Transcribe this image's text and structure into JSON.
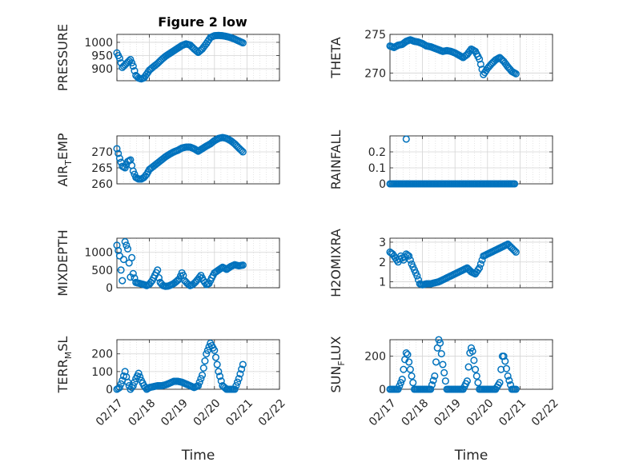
{
  "figure": {
    "title": "Figure 2 low"
  },
  "colors": {
    "marker": "#0072BD",
    "axis": "#262626",
    "grid": "#d4d4d4"
  },
  "x_axis": {
    "type": "date",
    "range": [
      "02/17",
      "02/22"
    ],
    "tick_labels": [
      "02/17",
      "02/18",
      "02/19",
      "02/20",
      "02/21",
      "02/22"
    ],
    "xlabel": "Time"
  },
  "chart_data": [
    {
      "type": "scatter",
      "name": "pressure",
      "ylabel": "PRESSURE",
      "ylim": [
        855,
        1030
      ],
      "yticks": [
        900,
        950,
        1000
      ],
      "grid": true,
      "x": [
        "02/17 00:00",
        "02/17 02:00",
        "02/17 04:00",
        "02/17 06:00",
        "02/17 08:00",
        "02/17 10:00",
        "02/17 12:00",
        "02/17 14:00",
        "02/17 16:00",
        "02/17 18:00",
        "02/17 20:00",
        "02/17 22:00",
        "02/18 00:00",
        "02/18 03:00",
        "02/18 06:00",
        "02/18 09:00",
        "02/18 12:00",
        "02/18 15:00",
        "02/18 18:00",
        "02/18 21:00",
        "02/19 00:00",
        "02/19 03:00",
        "02/19 06:00",
        "02/19 09:00",
        "02/19 12:00",
        "02/19 15:00",
        "02/19 18:00",
        "02/19 21:00",
        "02/20 00:00",
        "02/20 03:00",
        "02/20 06:00",
        "02/20 09:00",
        "02/20 12:00",
        "02/20 15:00",
        "02/20 18:00",
        "02/20 21:00"
      ],
      "y": [
        960,
        940,
        905,
        915,
        925,
        935,
        910,
        875,
        865,
        862,
        866,
        880,
        895,
        908,
        920,
        935,
        948,
        958,
        968,
        978,
        988,
        994,
        990,
        975,
        962,
        975,
        995,
        1018,
        1025,
        1026,
        1025,
        1022,
        1018,
        1012,
        1005,
        998
      ]
    },
    {
      "type": "scatter",
      "name": "theta",
      "ylabel": "THETA",
      "ylim": [
        269,
        275
      ],
      "yticks": [
        270,
        275
      ],
      "grid": true,
      "x": [
        "02/17 00:00",
        "02/17 03:00",
        "02/17 06:00",
        "02/17 09:00",
        "02/17 12:00",
        "02/17 15:00",
        "02/17 18:00",
        "02/17 21:00",
        "02/18 00:00",
        "02/18 03:00",
        "02/18 06:00",
        "02/18 09:00",
        "02/18 12:00",
        "02/18 15:00",
        "02/18 18:00",
        "02/18 21:00",
        "02/19 00:00",
        "02/19 03:00",
        "02/19 06:00",
        "02/19 09:00",
        "02/19 12:00",
        "02/19 15:00",
        "02/19 18:00",
        "02/19 21:00",
        "02/20 00:00",
        "02/20 03:00",
        "02/20 06:00",
        "02/20 09:00",
        "02/20 12:00",
        "02/20 15:00",
        "02/20 18:00",
        "02/20 21:00"
      ],
      "y": [
        273.5,
        273.3,
        273.6,
        273.7,
        274.1,
        274.3,
        274.1,
        274.0,
        273.8,
        273.5,
        273.4,
        273.2,
        273.0,
        272.8,
        272.9,
        272.8,
        272.6,
        272.3,
        272.0,
        272.4,
        273.1,
        272.8,
        271.8,
        269.8,
        270.6,
        271.2,
        271.7,
        272.0,
        271.5,
        270.8,
        270.2,
        269.9
      ]
    },
    {
      "type": "scatter",
      "name": "air_temp",
      "ylabel": "AIR_TEMP",
      "ylim": [
        260,
        275
      ],
      "yticks": [
        260,
        265,
        270
      ],
      "grid": true,
      "x": [
        "02/17 00:00",
        "02/17 02:00",
        "02/17 04:00",
        "02/17 06:00",
        "02/17 08:00",
        "02/17 10:00",
        "02/17 12:00",
        "02/17 14:00",
        "02/17 16:00",
        "02/17 18:00",
        "02/17 20:00",
        "02/17 22:00",
        "02/18 00:00",
        "02/18 03:00",
        "02/18 06:00",
        "02/18 09:00",
        "02/18 12:00",
        "02/18 15:00",
        "02/18 18:00",
        "02/18 21:00",
        "02/19 00:00",
        "02/19 03:00",
        "02/19 06:00",
        "02/19 09:00",
        "02/19 12:00",
        "02/19 15:00",
        "02/19 18:00",
        "02/19 21:00",
        "02/20 00:00",
        "02/20 03:00",
        "02/20 06:00",
        "02/20 09:00",
        "02/20 12:00",
        "02/20 15:00",
        "02/20 18:00",
        "02/20 21:00"
      ],
      "y": [
        271,
        268,
        265.5,
        265,
        267,
        267.5,
        264,
        262,
        261.5,
        261.5,
        262,
        263,
        264.5,
        265.5,
        266.5,
        267.5,
        268.5,
        269.3,
        270,
        270.5,
        271.2,
        271.5,
        271.5,
        271,
        270.2,
        271,
        271.8,
        272.5,
        273.5,
        274.2,
        274.5,
        274.2,
        273.5,
        272.5,
        271.2,
        270
      ]
    },
    {
      "type": "scatter",
      "name": "rainfall",
      "ylabel": "RAINFALL",
      "ylim": [
        0,
        0.3
      ],
      "yticks": [
        0,
        0.1,
        0.2
      ],
      "grid": true,
      "x": [
        "02/17 00:00",
        "02/17 04:00",
        "02/17 08:00",
        "02/17 12:00",
        "02/17 16:00",
        "02/17 20:00",
        "02/18 00:00",
        "02/18 04:00",
        "02/18 08:00",
        "02/18 12:00",
        "02/18 16:00",
        "02/18 20:00",
        "02/19 00:00",
        "02/19 04:00",
        "02/19 08:00",
        "02/19 12:00",
        "02/19 16:00",
        "02/19 20:00",
        "02/20 00:00",
        "02/20 04:00",
        "02/20 08:00",
        "02/20 12:00",
        "02/20 16:00",
        "02/20 20:00"
      ],
      "y": [
        0,
        0,
        0,
        0,
        0,
        0,
        0,
        0,
        0,
        0,
        0,
        0,
        0,
        0,
        0,
        0,
        0,
        0,
        0,
        0,
        0,
        0,
        0,
        0
      ],
      "outliers": {
        "x": [
          "02/17 12:00"
        ],
        "y": [
          0.28
        ]
      }
    },
    {
      "type": "scatter",
      "name": "mixdepth",
      "ylabel": "MIXDEPTH",
      "ylim": [
        0,
        1400
      ],
      "yticks": [
        0,
        500,
        1000
      ],
      "grid": true,
      "x": [
        "02/17 00:00",
        "02/17 02:00",
        "02/17 03:00",
        "02/17 04:00",
        "02/17 05:00",
        "02/17 06:00",
        "02/17 08:00",
        "02/17 09:00",
        "02/17 10:00",
        "02/17 11:00",
        "02/17 12:00",
        "02/17 14:00",
        "02/17 16:00",
        "02/17 18:00",
        "02/17 20:00",
        "02/17 22:00",
        "02/18 00:00",
        "02/18 02:00",
        "02/18 04:00",
        "02/18 06:00",
        "02/18 07:00",
        "02/18 08:00",
        "02/18 10:00",
        "02/18 12:00",
        "02/18 14:00",
        "02/18 16:00",
        "02/18 18:00",
        "02/18 20:00",
        "02/18 22:00",
        "02/19 00:00",
        "02/19 01:00",
        "02/19 02:00",
        "02/19 04:00",
        "02/19 06:00",
        "02/19 08:00",
        "02/19 10:00",
        "02/19 12:00",
        "02/19 14:00",
        "02/19 16:00",
        "02/19 18:00",
        "02/19 20:00",
        "02/19 22:00",
        "02/20 00:00",
        "02/20 03:00",
        "02/20 06:00",
        "02/20 09:00",
        "02/20 12:00",
        "02/20 15:00",
        "02/20 18:00",
        "02/20 21:00"
      ],
      "y": [
        1200,
        900,
        500,
        200,
        800,
        1300,
        1100,
        700,
        300,
        850,
        400,
        150,
        130,
        110,
        90,
        60,
        100,
        200,
        350,
        500,
        280,
        150,
        60,
        40,
        50,
        80,
        120,
        180,
        250,
        420,
        350,
        200,
        120,
        60,
        90,
        160,
        250,
        350,
        200,
        90,
        120,
        280,
        420,
        500,
        580,
        520,
        600,
        650,
        620,
        640
      ]
    },
    {
      "type": "scatter",
      "name": "h2omixra",
      "ylabel": "H2OMIXRA",
      "ylim": [
        0.7,
        3.2
      ],
      "yticks": [
        1,
        2,
        3
      ],
      "grid": true,
      "x": [
        "02/17 00:00",
        "02/17 02:00",
        "02/17 04:00",
        "02/17 06:00",
        "02/17 08:00",
        "02/17 10:00",
        "02/17 12:00",
        "02/17 14:00",
        "02/17 16:00",
        "02/17 18:00",
        "02/17 20:00",
        "02/17 22:00",
        "02/18 00:00",
        "02/18 03:00",
        "02/18 06:00",
        "02/18 09:00",
        "02/18 12:00",
        "02/18 15:00",
        "02/18 18:00",
        "02/18 21:00",
        "02/19 00:00",
        "02/19 03:00",
        "02/19 06:00",
        "02/19 09:00",
        "02/19 12:00",
        "02/19 15:00",
        "02/19 18:00",
        "02/19 21:00",
        "02/20 00:00",
        "02/20 03:00",
        "02/20 06:00",
        "02/20 09:00",
        "02/20 12:00",
        "02/20 15:00",
        "02/20 18:00",
        "02/20 21:00"
      ],
      "y": [
        2.5,
        2.4,
        2.2,
        2.0,
        2.3,
        2.1,
        2.4,
        2.3,
        1.9,
        1.6,
        1.3,
        0.9,
        0.85,
        0.9,
        0.9,
        0.95,
        1.0,
        1.1,
        1.2,
        1.3,
        1.4,
        1.5,
        1.6,
        1.7,
        1.5,
        1.4,
        1.7,
        2.3,
        2.4,
        2.5,
        2.6,
        2.7,
        2.8,
        2.9,
        2.7,
        2.5
      ]
    },
    {
      "type": "scatter",
      "name": "terr_msl",
      "ylabel": "TERR_MSL",
      "ylim": [
        0,
        280
      ],
      "yticks": [
        0,
        100,
        200
      ],
      "grid": true,
      "x": [
        "02/17 00:00",
        "02/17 02:00",
        "02/17 04:00",
        "02/17 06:00",
        "02/17 08:00",
        "02/17 10:00",
        "02/17 12:00",
        "02/17 14:00",
        "02/17 16:00",
        "02/17 18:00",
        "02/17 20:00",
        "02/17 22:00",
        "02/18 00:00",
        "02/18 03:00",
        "02/18 06:00",
        "02/18 09:00",
        "02/18 12:00",
        "02/18 15:00",
        "02/18 18:00",
        "02/18 21:00",
        "02/19 00:00",
        "02/19 03:00",
        "02/19 06:00",
        "02/19 09:00",
        "02/19 12:00",
        "02/19 15:00",
        "02/19 18:00",
        "02/19 21:00",
        "02/20 00:00",
        "02/20 03:00",
        "02/20 06:00",
        "02/20 09:00",
        "02/20 12:00",
        "02/20 15:00",
        "02/20 18:00",
        "02/20 21:00"
      ],
      "y": [
        0,
        10,
        50,
        100,
        40,
        0,
        20,
        60,
        90,
        50,
        20,
        0,
        10,
        15,
        20,
        20,
        25,
        35,
        45,
        45,
        40,
        30,
        20,
        10,
        20,
        80,
        200,
        260,
        220,
        100,
        20,
        0,
        0,
        0,
        60,
        140
      ]
    },
    {
      "type": "scatter",
      "name": "sun_flux",
      "ylabel": "SUN_FLUX",
      "ylim": [
        0,
        300
      ],
      "yticks": [
        0,
        200
      ],
      "grid": true,
      "x": [
        "02/17 00:00",
        "02/17 03:00",
        "02/17 06:00",
        "02/17 09:00",
        "02/17 11:00",
        "02/17 12:00",
        "02/17 13:00",
        "02/17 15:00",
        "02/17 18:00",
        "02/17 21:00",
        "02/18 00:00",
        "02/18 03:00",
        "02/18 06:00",
        "02/18 09:00",
        "02/18 11:00",
        "02/18 12:00",
        "02/18 13:00",
        "02/18 15:00",
        "02/18 18:00",
        "02/18 21:00",
        "02/19 00:00",
        "02/19 03:00",
        "02/19 06:00",
        "02/19 09:00",
        "02/19 11:00",
        "02/19 12:00",
        "02/19 13:00",
        "02/19 15:00",
        "02/19 18:00",
        "02/19 21:00",
        "02/20 00:00",
        "02/20 03:00",
        "02/20 06:00",
        "02/20 09:00",
        "02/20 11:00",
        "02/20 12:00",
        "02/20 13:00",
        "02/20 15:00",
        "02/20 18:00",
        "02/20 21:00"
      ],
      "y": [
        0,
        0,
        0,
        60,
        180,
        220,
        210,
        120,
        0,
        0,
        0,
        0,
        0,
        80,
        250,
        300,
        280,
        150,
        0,
        0,
        0,
        0,
        0,
        50,
        220,
        250,
        230,
        120,
        0,
        0,
        0,
        0,
        0,
        40,
        200,
        200,
        170,
        80,
        0,
        0
      ]
    }
  ]
}
